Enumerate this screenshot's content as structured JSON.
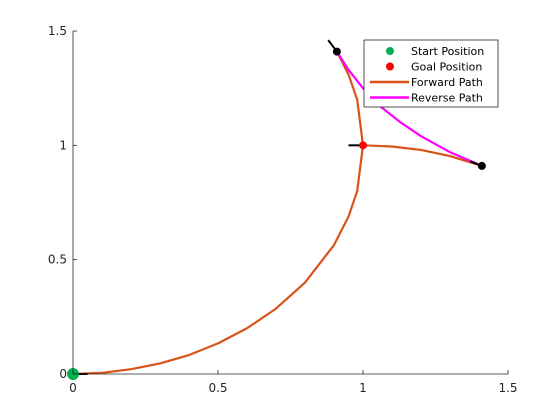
{
  "chart_data": {
    "type": "line",
    "title": "",
    "xlabel": "",
    "ylabel": "",
    "xlim": [
      0,
      1.5
    ],
    "ylim": [
      0,
      1.5
    ],
    "xticks": [
      0,
      0.5,
      1,
      1.5
    ],
    "yticks": [
      0,
      0.5,
      1,
      1.5
    ],
    "xtick_labels": [
      "0",
      "0.5",
      "1",
      "1.5"
    ],
    "ytick_labels": [
      "0",
      "0.5",
      "1",
      "1.5"
    ],
    "grid": false,
    "legend_position": "top-right",
    "legend": [
      {
        "label": "Start Position",
        "marker": "dot",
        "color": "#00b050"
      },
      {
        "label": "Goal Position",
        "marker": "dot",
        "color": "#ff0000"
      },
      {
        "label": "Forward Path",
        "marker": "line",
        "color": "#d95319"
      },
      {
        "label": "Reverse Path",
        "marker": "line",
        "color": "#ff00ff"
      }
    ],
    "series": [
      {
        "name": "Forward Path",
        "color": "#d95319",
        "points": [
          [
            0,
            0
          ],
          [
            0.1,
            0.005
          ],
          [
            0.2,
            0.021
          ],
          [
            0.3,
            0.046
          ],
          [
            0.4,
            0.083
          ],
          [
            0.5,
            0.134
          ],
          [
            0.6,
            0.2
          ],
          [
            0.7,
            0.286
          ],
          [
            0.8,
            0.4
          ],
          [
            0.9,
            0.564
          ],
          [
            0.95,
            0.688
          ],
          [
            0.98,
            0.8
          ],
          [
            1.0,
            1.0
          ],
          [
            0.98,
            1.2
          ],
          [
            0.95,
            1.31
          ],
          [
            0.91,
            1.41
          ]
        ]
      },
      {
        "name": "Forward Path",
        "color": "#d95319",
        "points": [
          [
            1.0,
            1.0
          ],
          [
            1.1,
            0.995
          ],
          [
            1.2,
            0.98
          ],
          [
            1.3,
            0.953
          ],
          [
            1.41,
            0.91
          ]
        ]
      },
      {
        "name": "Reverse Path",
        "color": "#ff00ff",
        "points": [
          [
            0.91,
            1.41
          ],
          [
            0.95,
            1.33
          ],
          [
            1.0,
            1.25
          ],
          [
            1.06,
            1.17
          ],
          [
            1.13,
            1.1
          ],
          [
            1.2,
            1.04
          ],
          [
            1.3,
            0.97
          ],
          [
            1.41,
            0.91
          ]
        ]
      }
    ],
    "markers": [
      {
        "name": "Start Position",
        "x": 0,
        "y": 0,
        "color": "#00b050",
        "size": "large"
      },
      {
        "name": "Goal Position",
        "x": 1.0,
        "y": 1.0,
        "color": "#ff0000",
        "size": "small"
      },
      {
        "name": "waypoint",
        "x": 0.91,
        "y": 1.41,
        "color": "#000000",
        "size": "small"
      },
      {
        "name": "waypoint",
        "x": 1.41,
        "y": 0.91,
        "color": "#000000",
        "size": "small"
      }
    ],
    "heading_segments": [
      {
        "from": [
          0,
          0
        ],
        "to": [
          0.05,
          0
        ]
      },
      {
        "from": [
          0.95,
          1.0
        ],
        "to": [
          1.0,
          1.0
        ]
      },
      {
        "from": [
          0.88,
          1.46
        ],
        "to": [
          0.91,
          1.41
        ]
      },
      {
        "from": [
          1.37,
          0.93
        ],
        "to": [
          1.41,
          0.91
        ]
      }
    ]
  }
}
